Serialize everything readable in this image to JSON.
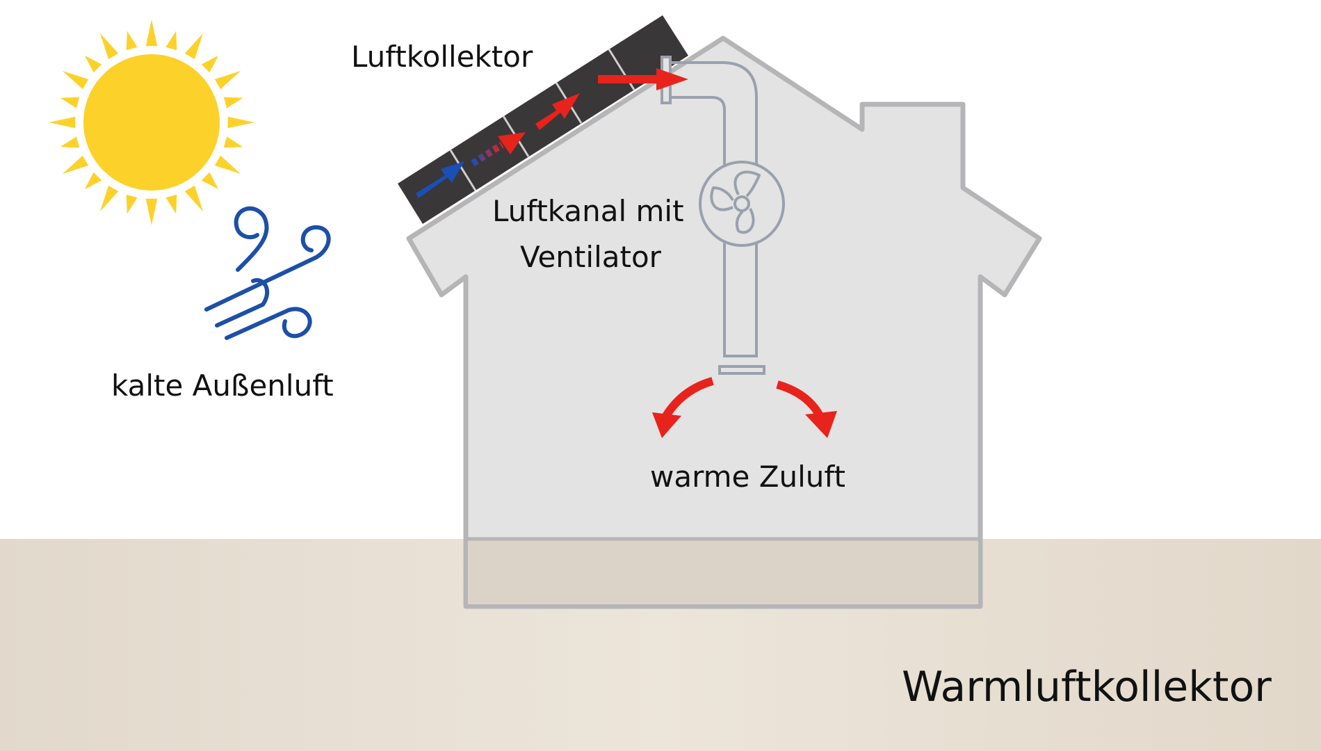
{
  "title": "Warmluftkollektor",
  "labels": {
    "collector": "Luftkollektor",
    "duct_line1": "Luftkanal mit",
    "duct_line2": "Ventilator",
    "cold_air": "kalte Außenluft",
    "warm_air": "warme Zuluft"
  },
  "icons": {
    "sun": "sun-icon",
    "wind": "wind-icon",
    "fan": "fan-icon"
  },
  "colors": {
    "sun": "#fcd22a",
    "wind": "#1c4fa8",
    "cold_arrow": "#1a4fb6",
    "warm_arrow": "#e8231c",
    "house_fill": "#e3e3e3",
    "house_stroke": "#b5b5b8",
    "panel": "#3a3739",
    "duct_stroke": "#9aa0ad",
    "ground": "#e7dfd3",
    "foundation": "#dbd2c8"
  }
}
